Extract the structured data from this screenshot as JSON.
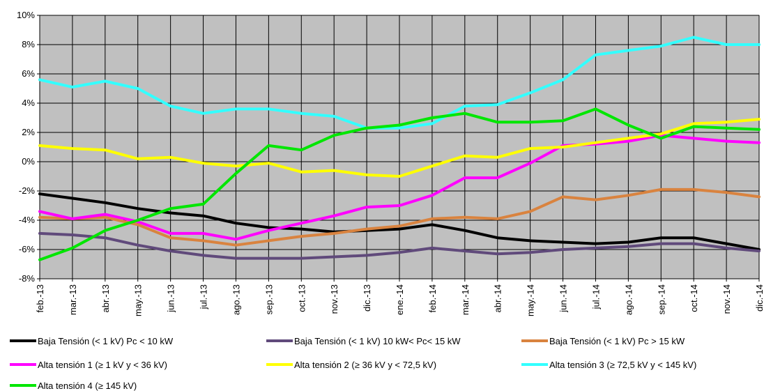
{
  "chart_data": {
    "type": "line",
    "title": "",
    "xlabel": "",
    "ylabel": "",
    "ylim": [
      -0.08,
      0.1
    ],
    "y_ticks": [
      -0.08,
      -0.06,
      -0.04,
      -0.02,
      0,
      0.02,
      0.04,
      0.06,
      0.08,
      0.1
    ],
    "y_tick_labels": [
      "-8%",
      "-6%",
      "-4%",
      "-2%",
      "0%",
      "2%",
      "4%",
      "6%",
      "8%",
      "10%"
    ],
    "grid": true,
    "plot_background": "#c0c0c0",
    "legend_position": "bottom",
    "categories": [
      "feb.-13",
      "mar.-13",
      "abr.-13",
      "may.-13",
      "jun.-13",
      "jul.-13",
      "ago.-13",
      "sep.-13",
      "oct.-13",
      "nov.-13",
      "dic.-13",
      "ene.-14",
      "feb.-14",
      "mar.-14",
      "abr.-14",
      "may.-14",
      "jun.-14",
      "jul.-14",
      "ago.-14",
      "sep.-14",
      "oct.-14",
      "nov.-14",
      "dic.-14"
    ],
    "series": [
      {
        "name": "Baja Tensión (< 1 kV) Pc < 10 kW",
        "color": "#000000",
        "values": [
          -0.022,
          -0.025,
          -0.028,
          -0.032,
          -0.035,
          -0.037,
          -0.042,
          -0.045,
          -0.046,
          -0.048,
          -0.047,
          -0.046,
          -0.043,
          -0.047,
          -0.052,
          -0.054,
          -0.055,
          -0.056,
          -0.055,
          -0.052,
          -0.052,
          -0.056,
          -0.06
        ]
      },
      {
        "name": "Baja Tensión (< 1 kV) 10 kW< Pc< 15 kW",
        "color": "#604a7b",
        "values": [
          -0.049,
          -0.05,
          -0.052,
          -0.057,
          -0.061,
          -0.064,
          -0.066,
          -0.066,
          -0.066,
          -0.065,
          -0.064,
          -0.062,
          -0.059,
          -0.061,
          -0.063,
          -0.062,
          -0.06,
          -0.059,
          -0.058,
          -0.056,
          -0.056,
          -0.059,
          -0.061
        ]
      },
      {
        "name": "Baja Tensión (< 1 kV) Pc > 15 kW",
        "color": "#d9833f",
        "values": [
          -0.038,
          -0.039,
          -0.038,
          -0.043,
          -0.052,
          -0.054,
          -0.057,
          -0.054,
          -0.051,
          -0.049,
          -0.046,
          -0.044,
          -0.039,
          -0.038,
          -0.039,
          -0.034,
          -0.024,
          -0.026,
          -0.023,
          -0.019,
          -0.019,
          -0.021,
          -0.024
        ]
      },
      {
        "name": "Alta tensión 1 (≥  1 kV y  < 36 kV)",
        "color": "#ff00ff",
        "values": [
          -0.034,
          -0.039,
          -0.036,
          -0.041,
          -0.049,
          -0.049,
          -0.053,
          -0.047,
          -0.042,
          -0.037,
          -0.031,
          -0.03,
          -0.023,
          -0.011,
          -0.011,
          -0.001,
          0.011,
          0.012,
          0.014,
          0.018,
          0.016,
          0.014,
          0.013
        ]
      },
      {
        "name": "Alta tensión 2 (≥  36 kV y < 72,5 kV)",
        "color": "#ffff00",
        "values": [
          0.011,
          0.009,
          0.008,
          0.002,
          0.003,
          -0.001,
          -0.003,
          -0.001,
          -0.007,
          -0.006,
          -0.009,
          -0.01,
          -0.003,
          0.004,
          0.003,
          0.009,
          0.01,
          0.013,
          0.016,
          0.019,
          0.026,
          0.027,
          0.029
        ]
      },
      {
        "name": "Alta tensión 3 (≥ 72,5 kV y < 145 kV)",
        "color": "#33ffff",
        "values": [
          0.056,
          0.051,
          0.055,
          0.05,
          0.038,
          0.033,
          0.036,
          0.036,
          0.033,
          0.031,
          0.023,
          0.023,
          0.026,
          0.038,
          0.039,
          0.047,
          0.056,
          0.073,
          0.076,
          0.079,
          0.085,
          0.08,
          0.08
        ]
      },
      {
        "name": "Alta tensión 4 (≥ 145 kV)",
        "color": "#00e600",
        "values": [
          -0.067,
          -0.059,
          -0.047,
          -0.04,
          -0.032,
          -0.029,
          -0.008,
          0.011,
          0.008,
          0.018,
          0.023,
          0.025,
          0.03,
          0.033,
          0.027,
          0.027,
          0.028,
          0.036,
          0.025,
          0.016,
          0.024,
          0.023,
          0.022
        ]
      }
    ]
  }
}
